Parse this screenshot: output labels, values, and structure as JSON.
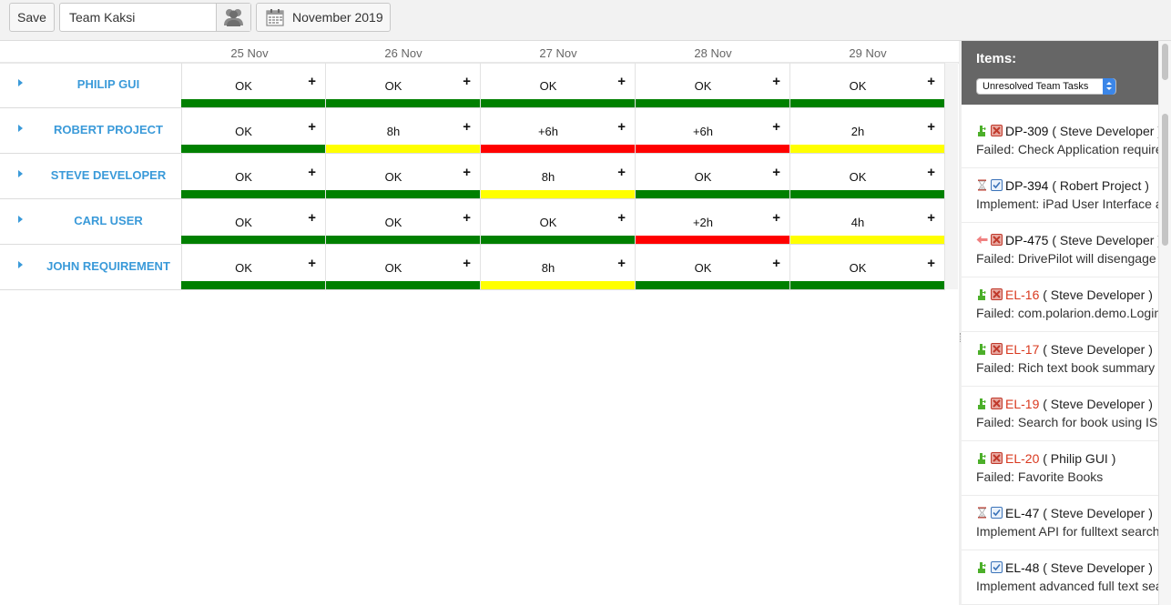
{
  "toolbar": {
    "save_label": "Save",
    "team_value": "Team Kaksi",
    "month_label": "November 2019"
  },
  "days": [
    "25 Nov",
    "26 Nov",
    "27 Nov",
    "28 Nov",
    "29 Nov"
  ],
  "status_colors": {
    "green": "#008000",
    "yellow": "#ffff00",
    "red": "#ff0000"
  },
  "rows": [
    {
      "name": "PHILIP GUI",
      "cells": [
        {
          "value": "OK",
          "status": "green"
        },
        {
          "value": "OK",
          "status": "green"
        },
        {
          "value": "OK",
          "status": "green"
        },
        {
          "value": "OK",
          "status": "green"
        },
        {
          "value": "OK",
          "status": "green"
        }
      ]
    },
    {
      "name": "ROBERT PROJECT",
      "cells": [
        {
          "value": "OK",
          "status": "green"
        },
        {
          "value": "8h",
          "status": "yellow"
        },
        {
          "value": "+6h",
          "status": "red"
        },
        {
          "value": "+6h",
          "status": "red"
        },
        {
          "value": "2h",
          "status": "yellow"
        }
      ]
    },
    {
      "name": "STEVE DEVELOPER",
      "cells": [
        {
          "value": "OK",
          "status": "green"
        },
        {
          "value": "OK",
          "status": "green"
        },
        {
          "value": "8h",
          "status": "yellow"
        },
        {
          "value": "OK",
          "status": "green"
        },
        {
          "value": "OK",
          "status": "green"
        }
      ]
    },
    {
      "name": "CARL USER",
      "cells": [
        {
          "value": "OK",
          "status": "green"
        },
        {
          "value": "OK",
          "status": "green"
        },
        {
          "value": "OK",
          "status": "green"
        },
        {
          "value": "+2h",
          "status": "red"
        },
        {
          "value": "4h",
          "status": "yellow"
        }
      ]
    },
    {
      "name": "JOHN REQUIREMENT",
      "cells": [
        {
          "value": "OK",
          "status": "green"
        },
        {
          "value": "OK",
          "status": "green"
        },
        {
          "value": "8h",
          "status": "yellow"
        },
        {
          "value": "OK",
          "status": "green"
        },
        {
          "value": "OK",
          "status": "green"
        }
      ]
    }
  ],
  "cell_add_symbol": "+",
  "panel": {
    "title": "Items:",
    "filter_value": "Unresolved Team Tasks",
    "items": [
      {
        "status_icon": "puzzle-icon",
        "type_icon": "failed-test-icon",
        "id": "DP-309",
        "id_red": false,
        "assignee": "( Steve Developer )",
        "desc": "Failed: Check Application requirements"
      },
      {
        "status_icon": "hourglass-icon",
        "type_icon": "task-check-icon",
        "id": "DP-394",
        "id_red": false,
        "assignee": "( Robert Project )",
        "desc": "Implement: iPad User Interface adjustments"
      },
      {
        "status_icon": "back-arrow-icon",
        "type_icon": "failed-test-icon",
        "id": "DP-475",
        "id_red": false,
        "assignee": "( Steve Developer )",
        "desc": "Failed: DrivePilot will disengage"
      },
      {
        "status_icon": "puzzle-icon",
        "type_icon": "failed-test-icon",
        "id": "EL-16",
        "id_red": true,
        "assignee": "( Steve Developer )",
        "desc": "Failed: com.polarion.demo.Login"
      },
      {
        "status_icon": "puzzle-icon",
        "type_icon": "failed-test-icon",
        "id": "EL-17",
        "id_red": true,
        "assignee": "( Steve Developer )",
        "desc": "Failed: Rich text book summary"
      },
      {
        "status_icon": "puzzle-icon",
        "type_icon": "failed-test-icon",
        "id": "EL-19",
        "id_red": true,
        "assignee": "( Steve Developer )",
        "desc": "Failed: Search for book using ISBN"
      },
      {
        "status_icon": "puzzle-icon",
        "type_icon": "failed-test-icon",
        "id": "EL-20",
        "id_red": true,
        "assignee": "( Philip GUI )",
        "desc": "Failed: Favorite Books"
      },
      {
        "status_icon": "hourglass-icon",
        "type_icon": "task-check-icon",
        "id": "EL-47",
        "id_red": false,
        "assignee": "( Steve Developer )",
        "desc": "Implement API for fulltext search"
      },
      {
        "status_icon": "puzzle-icon",
        "type_icon": "task-check-icon",
        "id": "EL-48",
        "id_red": false,
        "assignee": "( Steve Developer )",
        "desc": "Implement advanced full text search"
      }
    ]
  }
}
